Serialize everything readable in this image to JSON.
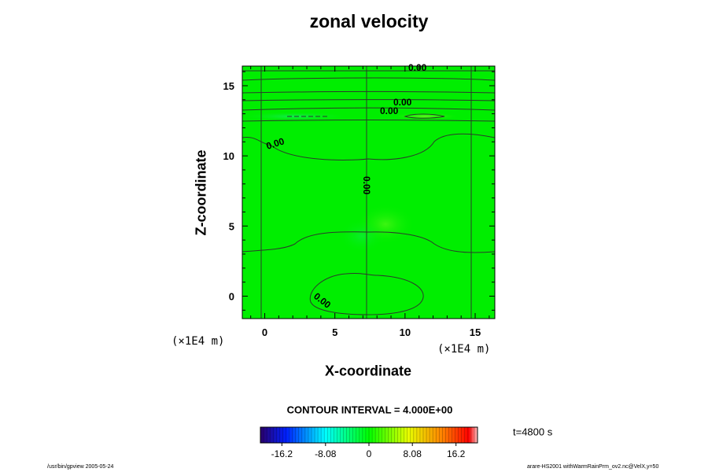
{
  "chart_data": {
    "type": "contour",
    "title": "zonal velocity",
    "xlabel": "X-coordinate",
    "ylabel": "Z-coordinate",
    "x_unit": "(×1E4 m)",
    "y_unit": "(×1E4 m)",
    "xlim": [
      -1.6,
      16.4
    ],
    "ylim": [
      -1.6,
      16.4
    ],
    "x_ticks": [
      0,
      5,
      10,
      15
    ],
    "y_ticks": [
      0,
      5,
      10,
      15
    ],
    "x_tick_labels": [
      "0",
      "5",
      "10",
      "15"
    ],
    "y_tick_labels": [
      "0",
      "5",
      "10",
      "15"
    ],
    "contour_interval_text": "CONTOUR INTERVAL = 4.000E+00",
    "contour_labels": [
      {
        "text": "0.00",
        "x": 10.3,
        "z": 16.1
      },
      {
        "text": "0.00",
        "x": 9.6,
        "z": 13.5
      },
      {
        "text": "0.00",
        "x": 9.2,
        "z": 12.9
      },
      {
        "text": "0.00",
        "x": 1.0,
        "z": 10.8
      },
      {
        "text": "0.00",
        "x": 7.3,
        "z": 7.6
      },
      {
        "text": "0.00",
        "x": 4.0,
        "z": -0.6
      }
    ],
    "colorbar": {
      "ticks": [
        -16.2,
        -8.08,
        0,
        8.08,
        16.2
      ],
      "tick_labels": [
        "-16.2",
        "-8.08",
        "0",
        "8.08",
        "16.2"
      ],
      "range": [
        -20.2,
        20.2
      ]
    },
    "time_label": "t=4800 s",
    "colors": {
      "field_background": "#00ee00",
      "contour_line": "#2b3a2b"
    }
  },
  "footer": {
    "left": "/usr/bin/gpview 2005-05-24",
    "right": "arare-HS2001 withWarmRainPrm_ov2.nc@VelX,y=50"
  }
}
